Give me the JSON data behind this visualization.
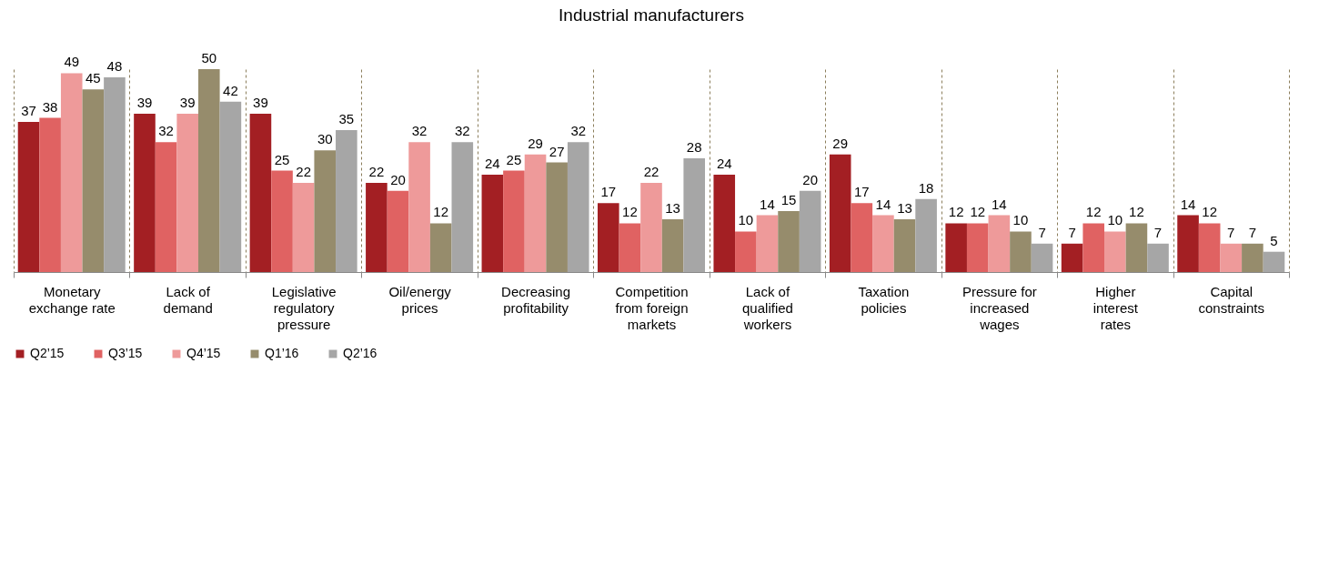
{
  "chart_data": {
    "type": "bar",
    "title": "Industrial manufacturers",
    "categories": [
      "Monetary exchange rate",
      "Lack of demand",
      "Legislative regulatory pressure",
      "Oil/energy prices",
      "Decreasing profitability",
      "Competition from foreign markets",
      "Lack of qualified workers",
      "Taxation policies",
      "Pressure for increased wages",
      "Higher interest rates",
      "Capital constraints"
    ],
    "series": [
      {
        "name": "Q2’15",
        "color": "#a31f23",
        "values": [
          37,
          39,
          39,
          22,
          24,
          17,
          24,
          29,
          12,
          7,
          14
        ]
      },
      {
        "name": "Q3’15",
        "color": "#e06262",
        "values": [
          38,
          32,
          25,
          20,
          25,
          12,
          10,
          17,
          12,
          12,
          12
        ]
      },
      {
        "name": "Q4’15",
        "color": "#ee9a9a",
        "values": [
          49,
          39,
          22,
          32,
          29,
          22,
          14,
          14,
          14,
          10,
          7
        ]
      },
      {
        "name": "Q1’16",
        "color": "#968c6c",
        "values": [
          45,
          50,
          30,
          12,
          27,
          13,
          15,
          13,
          10,
          12,
          7
        ]
      },
      {
        "name": "Q2’16",
        "color": "#a6a6a6",
        "values": [
          48,
          42,
          35,
          32,
          32,
          28,
          20,
          18,
          7,
          7,
          5
        ]
      }
    ],
    "data_labels": true,
    "grid": "x",
    "legend": "bottom"
  }
}
